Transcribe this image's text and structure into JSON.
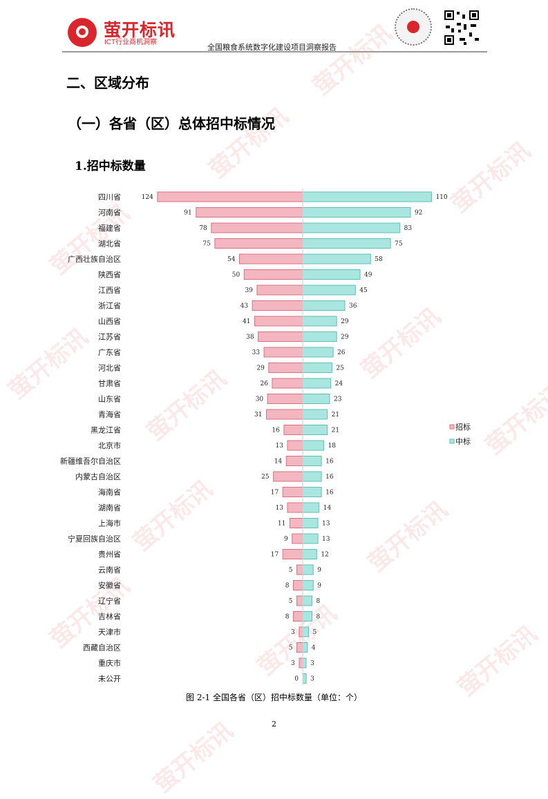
{
  "header": {
    "logo_name": "萤开标讯",
    "logo_tagline": "ICT行业商机洞察",
    "report_title": "全国粮食系统数字化建设项目洞察报告",
    "brand_color": "#d8262c"
  },
  "headings": {
    "h1": "二、区域分布",
    "h2": "（一）各省（区）总体招中标情况",
    "h3": "1.招中标数量"
  },
  "chart_data": {
    "type": "bar",
    "orientation": "horizontal-butterfly",
    "categories": [
      "四川省",
      "河南省",
      "福建省",
      "湖北省",
      "广西壮族自治区",
      "陕西省",
      "江西省",
      "浙江省",
      "山西省",
      "江苏省",
      "广东省",
      "河北省",
      "甘肃省",
      "山东省",
      "青海省",
      "黑龙江省",
      "北京市",
      "新疆维吾尔自治区",
      "内蒙古自治区",
      "海南省",
      "湖南省",
      "上海市",
      "宁夏回族自治区",
      "贵州省",
      "云南省",
      "安徽省",
      "辽宁省",
      "吉林省",
      "天津市",
      "西藏自治区",
      "重庆市",
      "未公开"
    ],
    "series": [
      {
        "name": "招标",
        "color": "#f4b6c0",
        "stroke": "#d9707f",
        "side": "left",
        "values": [
          124,
          91,
          78,
          75,
          54,
          50,
          39,
          43,
          41,
          38,
          33,
          29,
          26,
          30,
          31,
          16,
          13,
          14,
          25,
          17,
          13,
          11,
          9,
          17,
          5,
          8,
          5,
          8,
          3,
          5,
          3,
          0
        ]
      },
      {
        "name": "中标",
        "color": "#a9e6e0",
        "stroke": "#5fbfb6",
        "side": "right",
        "values": [
          110,
          92,
          83,
          75,
          58,
          49,
          45,
          36,
          29,
          29,
          26,
          25,
          24,
          23,
          21,
          21,
          18,
          16,
          16,
          16,
          14,
          13,
          13,
          12,
          9,
          9,
          8,
          8,
          5,
          4,
          3,
          3
        ]
      }
    ],
    "legend_position": "right"
  },
  "caption": "图 2-1  全国各省（区）招中标数量（单位：个）",
  "page_number": "2",
  "watermark": "萤开标讯"
}
